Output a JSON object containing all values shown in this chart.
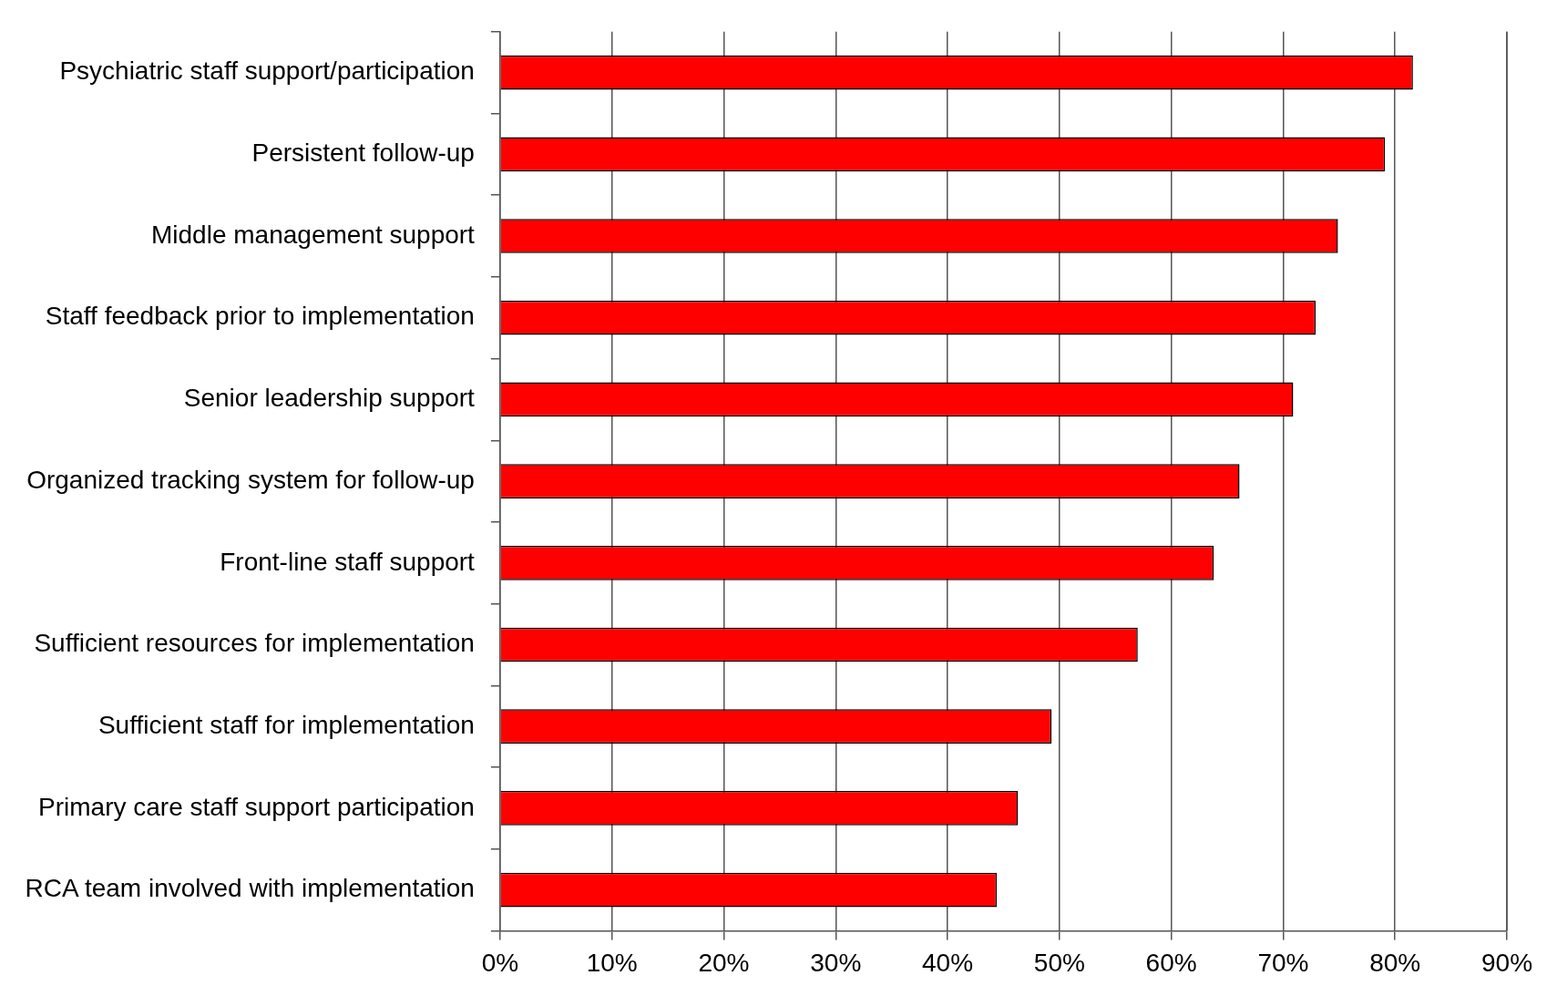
{
  "chart_data": {
    "type": "bar",
    "orientation": "horizontal",
    "categories": [
      "Psychiatric staff support/participation",
      "Persistent follow-up",
      "Middle management support",
      "Staff feedback prior to implementation",
      "Senior leadership support",
      "Organized tracking system for follow-up",
      "Front-line staff support",
      "Sufficient resources for implementation",
      "Sufficient staff for implementation",
      "Primary care staff support participation",
      "RCA team involved with implementation"
    ],
    "values": [
      81.6,
      79.1,
      74.9,
      72.9,
      70.9,
      66.1,
      63.8,
      57.0,
      49.3,
      46.3,
      44.4
    ],
    "color": "#ff0000",
    "xlim": [
      0,
      90
    ],
    "xticks": [
      {
        "value": 0,
        "label": "0%"
      },
      {
        "value": 10,
        "label": "10%"
      },
      {
        "value": 20,
        "label": "20%"
      },
      {
        "value": 30,
        "label": "30%"
      },
      {
        "value": 40,
        "label": "40%"
      },
      {
        "value": 50,
        "label": "50%"
      },
      {
        "value": 60,
        "label": "60%"
      },
      {
        "value": 70,
        "label": "70%"
      },
      {
        "value": 80,
        "label": "80%"
      },
      {
        "value": 90,
        "label": "90%"
      }
    ],
    "grid": "x"
  }
}
